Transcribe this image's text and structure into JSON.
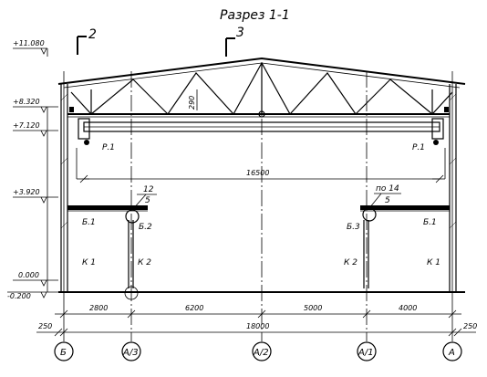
{
  "title": "Разрез 1-1",
  "section_marks": [
    {
      "number": "2"
    },
    {
      "number": "3"
    }
  ],
  "levels": [
    "+11.080",
    "+8.320",
    "+7.120",
    "+3.920",
    "0.000",
    "-0.200"
  ],
  "truss_height": "290",
  "crane_span": "16500",
  "crane_labels": [
    "Р.1",
    "Р.1"
  ],
  "node_callouts": [
    {
      "top": "12",
      "bottom": "5"
    },
    {
      "top": "по 14",
      "bottom": "5"
    }
  ],
  "beam_labels": [
    "Б.1",
    "Б.2",
    "Б.3",
    "Б.1"
  ],
  "column_labels": [
    "К 1",
    "К 2",
    "К 2",
    "К 1"
  ],
  "dimensions": {
    "bays": [
      "2800",
      "6200",
      "5000",
      "4000"
    ],
    "total": "18000",
    "offset_left": "250",
    "offset_right": "250"
  },
  "axes": [
    "Б",
    "А/3",
    "А/2",
    "А/1",
    "А"
  ]
}
